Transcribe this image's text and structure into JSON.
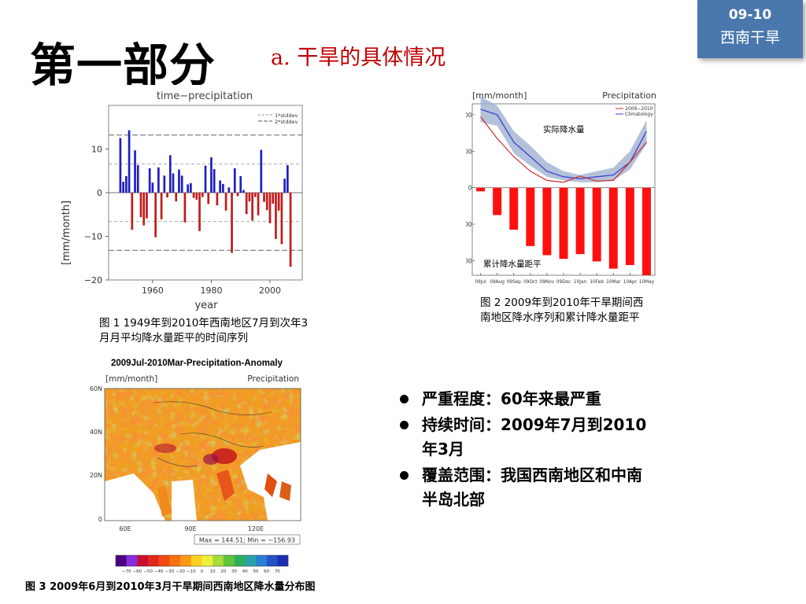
{
  "badge": {
    "line1": "09-10",
    "line2": "西南干旱"
  },
  "title": "第一部分",
  "subtitle": "a. 干旱的具体情况",
  "captions": {
    "fig1": "图 1 1949年到2010年西南地区7月到次年3月月平均降水量距平的时间序列",
    "fig2": "图 2 2009年到2010年干旱期间西南地区降水序列和累计降水量距平",
    "fig3": "图 3 2009年6月到2010年3月干旱期间西南地区降水量分布图"
  },
  "bullets": [
    "严重程度：60年来最严重",
    "持续时间：2009年7月到2010年3月",
    "覆盖范围：我国西南地区和中南半岛北部"
  ],
  "colors": {
    "badge": "#4a78ad",
    "subtitle": "#c00000",
    "positive": "#1f1fbf",
    "negative": "#c41a1a",
    "climatology": "#3b3bd1",
    "observed": "#d12a2a",
    "band": "#9aaccc",
    "cum_bar": "#ff1010"
  },
  "chart_data": [
    {
      "type": "bar",
      "title": "time−precipitation",
      "ylabel": "[mm/month]",
      "xlabel": "year",
      "xlim": [
        1945,
        2011
      ],
      "ylim": [
        -20,
        20
      ],
      "xticks": [
        1960,
        1980,
        2000
      ],
      "yticks": [
        -20,
        -10,
        0,
        10
      ],
      "legend": [
        "1*stddev",
        "2*stddev"
      ],
      "stddev_lines": [
        6.6,
        -6.6,
        13.2,
        -13.2
      ],
      "x": [
        1949,
        1950,
        1951,
        1952,
        1953,
        1954,
        1955,
        1956,
        1957,
        1958,
        1959,
        1960,
        1961,
        1962,
        1963,
        1964,
        1965,
        1966,
        1967,
        1968,
        1969,
        1970,
        1971,
        1972,
        1973,
        1974,
        1975,
        1976,
        1977,
        1978,
        1979,
        1980,
        1981,
        1982,
        1983,
        1984,
        1985,
        1986,
        1987,
        1988,
        1989,
        1990,
        1991,
        1992,
        1993,
        1994,
        1995,
        1996,
        1997,
        1998,
        1999,
        2000,
        2001,
        2002,
        2003,
        2004,
        2005,
        2006,
        2007,
        2008,
        2009
      ],
      "values": [
        12.5,
        2.5,
        3.8,
        14.3,
        -8.5,
        9.7,
        6.3,
        -5.6,
        -7.5,
        -5.9,
        5.6,
        2.3,
        -10.2,
        5.8,
        -6.1,
        3.9,
        -1.1,
        8.6,
        4.4,
        -2.0,
        5.3,
        3.9,
        -6.8,
        1.9,
        2.2,
        -1.2,
        -1.6,
        -8.8,
        -1.0,
        6.2,
        -2.6,
        8.1,
        5.4,
        -2.9,
        2.8,
        2.0,
        -4.1,
        1.2,
        -13.8,
        5.6,
        -0.8,
        3.8,
        0.6,
        -4.9,
        -2.0,
        -6.4,
        -1.0,
        -5.2,
        9.8,
        -2.1,
        -4.0,
        -7.0,
        -2.5,
        -10.6,
        -4.1,
        -11.8,
        3.2,
        6.3,
        -17.0,
        0,
        0
      ]
    },
    {
      "type": "bar",
      "title": "Precipitation",
      "ylabel": "[mm/month]",
      "categories": [
        "09Jul",
        "09Aug",
        "09Sep",
        "09Oct",
        "09Nov",
        "09Dec",
        "10Jan",
        "10Feb",
        "10Mar",
        "10Apr",
        "10May"
      ],
      "ylim": [
        -240,
        230
      ],
      "yticks": [
        -200,
        -100,
        0,
        100,
        200
      ],
      "legend": [
        "2009−2010",
        "Climatology"
      ],
      "annotations": {
        "top": "实际降水量",
        "bottom": "累计降水量距平"
      },
      "series": [
        {
          "name": "2009−2010",
          "type": "line",
          "values": [
            195,
            135,
            85,
            45,
            20,
            15,
            32,
            18,
            20,
            70,
            125
          ]
        },
        {
          "name": "Climatology",
          "type": "line",
          "values": [
            215,
            200,
            125,
            85,
            45,
            30,
            25,
            30,
            35,
            70,
            155
          ]
        },
        {
          "name": "band_upper",
          "type": "band",
          "values": [
            250,
            225,
            155,
            115,
            70,
            45,
            35,
            45,
            55,
            100,
            185
          ]
        },
        {
          "name": "band_lower",
          "type": "band",
          "values": [
            180,
            170,
            95,
            60,
            30,
            20,
            15,
            15,
            20,
            50,
            120
          ]
        },
        {
          "name": "cumulative_anomaly",
          "type": "bar",
          "values": [
            -10,
            -75,
            -115,
            -160,
            -185,
            -195,
            -182,
            -202,
            -222,
            -212,
            -240
          ]
        }
      ]
    },
    {
      "type": "heatmap",
      "title": "2009Jul-2010Mar-Precipitation-Anomaly",
      "ylabel": "[mm/month]",
      "label_right": "Precipitation",
      "lon_ticks": [
        "60E",
        "90E",
        "120E"
      ],
      "lat_ticks": [
        "60N",
        "40N",
        "20N",
        "0"
      ],
      "stats": "Max = 144.51; Min = −156.93",
      "colorbar_labels": [
        "−70",
        "−60",
        "−50",
        "−40",
        "−30",
        "−20",
        "−10",
        "0",
        "10",
        "20",
        "30",
        "40",
        "50",
        "60",
        "70"
      ],
      "colorbar_colors": [
        "#4b0082",
        "#8a2be2",
        "#c8102e",
        "#e3261b",
        "#f04a12",
        "#f6700e",
        "#fb9a14",
        "#fdd023",
        "#ecf03a",
        "#a8dc3a",
        "#5ec43c",
        "#2fae5a",
        "#27a3a8",
        "#2a7fd1",
        "#2352c8",
        "#1b2fb0"
      ]
    }
  ]
}
